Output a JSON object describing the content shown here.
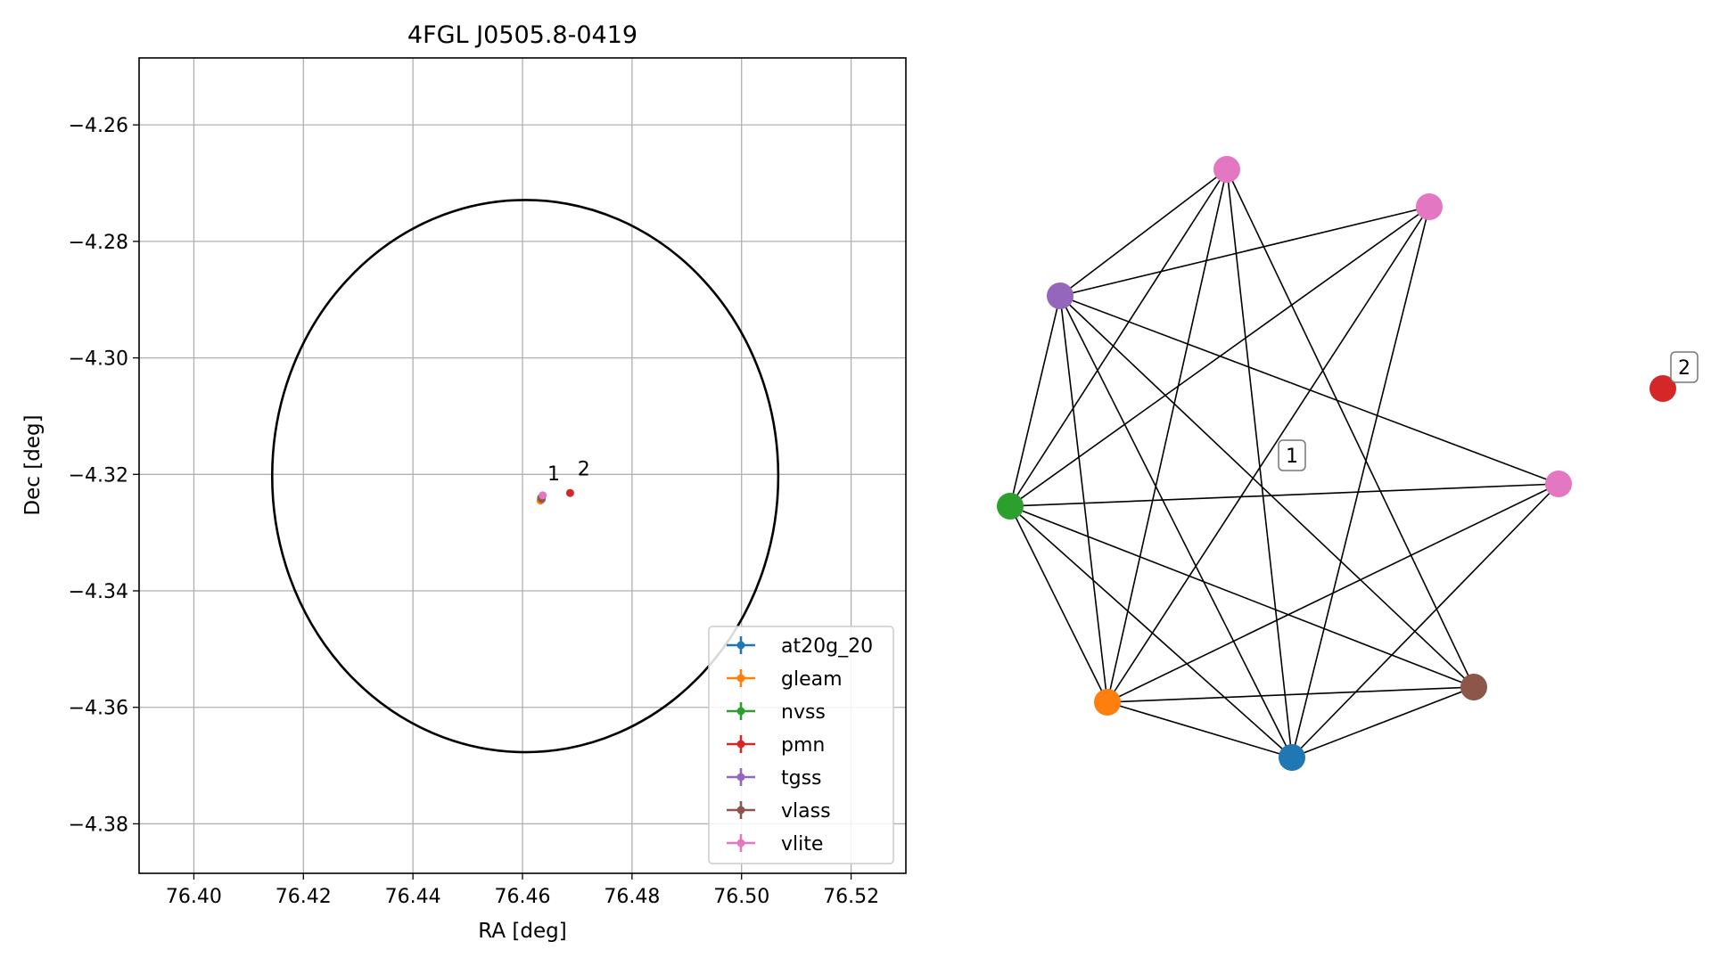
{
  "chart_data": [
    {
      "type": "scatter",
      "title": "4FGL J0505.8-0419",
      "xlabel": "RA [deg]",
      "ylabel": "Dec [deg]",
      "xlim": [
        76.39,
        76.53
      ],
      "ylim": [
        -4.3885,
        -4.2485
      ],
      "xticks": [
        76.4,
        76.42,
        76.44,
        76.46,
        76.48,
        76.5,
        76.52
      ],
      "xtick_labels": [
        "76.40",
        "76.42",
        "76.44",
        "76.46",
        "76.48",
        "76.50",
        "76.52"
      ],
      "yticks": [
        -4.26,
        -4.28,
        -4.3,
        -4.32,
        -4.34,
        -4.36,
        -4.38
      ],
      "ytick_labels": [
        "−4.26",
        "−4.28",
        "−4.30",
        "−4.32",
        "−4.34",
        "−4.36",
        "−4.38"
      ],
      "grid": true,
      "legend_position": "lower-right",
      "ellipse": {
        "center": [
          76.4605,
          -4.3203
        ],
        "semi_width_ra": 0.0462,
        "semi_height_dec": 0.0474,
        "color": "#000000"
      },
      "series": [
        {
          "name": "at20g_20",
          "color": "#1f77b4",
          "points": [
            [
              76.4635,
              -4.3243
            ]
          ]
        },
        {
          "name": "gleam",
          "color": "#ff7f0e",
          "points": [
            [
              76.4633,
              -4.3245
            ]
          ]
        },
        {
          "name": "nvss",
          "color": "#2ca02c",
          "points": [
            [
              76.4634,
              -4.324
            ]
          ]
        },
        {
          "name": "pmn",
          "color": "#d62728",
          "points": [
            [
              76.4687,
              -4.3232
            ]
          ]
        },
        {
          "name": "tgss",
          "color": "#9467bd",
          "points": [
            [
              76.4636,
              -4.3238
            ]
          ]
        },
        {
          "name": "vlass",
          "color": "#8c564b",
          "points": [
            [
              76.4635,
              -4.3242
            ]
          ]
        },
        {
          "name": "vlite",
          "color": "#e377c2",
          "points": [
            [
              76.4637,
              -4.3236
            ]
          ]
        }
      ],
      "annotations": [
        {
          "text": "1",
          "at": [
            76.4657,
            -4.321
          ]
        },
        {
          "text": "2",
          "at": [
            76.4712,
            -4.3202
          ]
        }
      ]
    },
    {
      "type": "network",
      "nodes": [
        {
          "id": "vlite_a",
          "color": "#e377c2"
        },
        {
          "id": "vlite_b",
          "color": "#e377c2"
        },
        {
          "id": "tgss",
          "color": "#9467bd"
        },
        {
          "id": "vlite_c",
          "color": "#e377c2"
        },
        {
          "id": "nvss",
          "color": "#2ca02c"
        },
        {
          "id": "vlass",
          "color": "#8c564b"
        },
        {
          "id": "gleam",
          "color": "#ff7f0e"
        },
        {
          "id": "at20g_20",
          "color": "#1f77b4"
        },
        {
          "id": "pmn",
          "color": "#d62728"
        }
      ],
      "edges": [
        [
          "vlite_a",
          "tgss"
        ],
        [
          "vlite_a",
          "nvss"
        ],
        [
          "vlite_a",
          "gleam"
        ],
        [
          "vlite_a",
          "at20g_20"
        ],
        [
          "vlite_a",
          "vlass"
        ],
        [
          "vlite_b",
          "tgss"
        ],
        [
          "vlite_b",
          "nvss"
        ],
        [
          "vlite_b",
          "gleam"
        ],
        [
          "vlite_b",
          "at20g_20"
        ],
        [
          "tgss",
          "vlite_c"
        ],
        [
          "tgss",
          "nvss"
        ],
        [
          "tgss",
          "gleam"
        ],
        [
          "tgss",
          "at20g_20"
        ],
        [
          "tgss",
          "vlass"
        ],
        [
          "nvss",
          "vlite_c"
        ],
        [
          "nvss",
          "gleam"
        ],
        [
          "nvss",
          "at20g_20"
        ],
        [
          "nvss",
          "vlass"
        ],
        [
          "vlite_c",
          "gleam"
        ],
        [
          "vlite_c",
          "at20g_20"
        ],
        [
          "gleam",
          "at20g_20"
        ],
        [
          "gleam",
          "vlass"
        ],
        [
          "at20g_20",
          "vlass"
        ]
      ],
      "labels": [
        {
          "text": "1"
        },
        {
          "text": "2"
        }
      ]
    }
  ]
}
